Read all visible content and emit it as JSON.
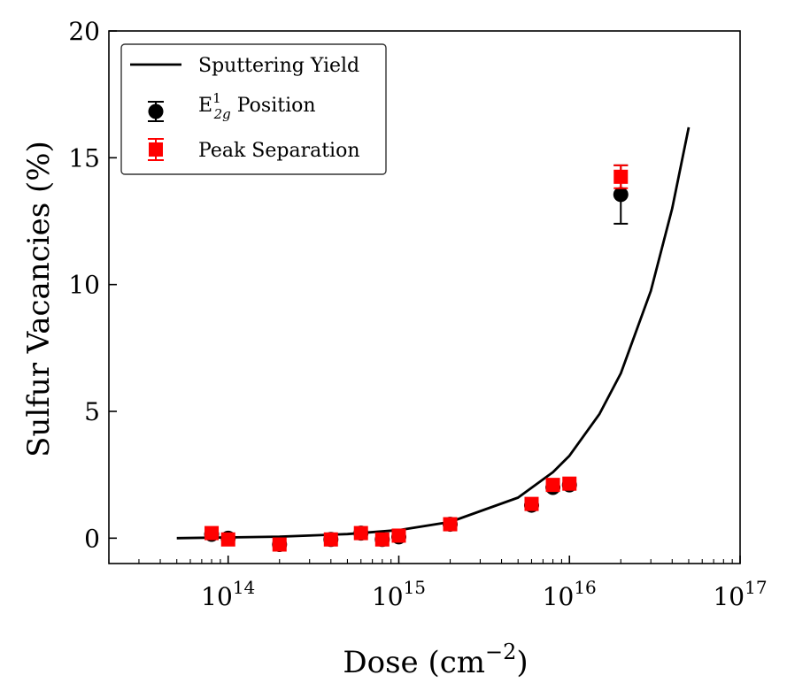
{
  "chart_data": {
    "type": "scatter",
    "title": "",
    "xlabel": "Dose (cm",
    "xlabel_sup": "−2",
    "xlabel_end": ")",
    "ylabel": "Sulfur Vacancies (%)",
    "xscale": "log",
    "xlim": [
      20000000000000.0,
      1e+17
    ],
    "ylim": [
      -1,
      20
    ],
    "grid": false,
    "legend_position": "top-left",
    "x_ticks": [
      {
        "value": 100000000000000.0,
        "base": "10",
        "exp": "14"
      },
      {
        "value": 1000000000000000.0,
        "base": "10",
        "exp": "15"
      },
      {
        "value": 1e+16,
        "base": "10",
        "exp": "16"
      },
      {
        "value": 1e+17,
        "base": "10",
        "exp": "17"
      }
    ],
    "y_ticks": [
      {
        "value": 0,
        "label": "0"
      },
      {
        "value": 5,
        "label": "5"
      },
      {
        "value": 10,
        "label": "10"
      },
      {
        "value": 15,
        "label": "15"
      },
      {
        "value": 20,
        "label": "20"
      }
    ],
    "series": [
      {
        "name": "Sputtering Yield",
        "kind": "line",
        "color": "#000000",
        "x": [
          50000000000000.0,
          100000000000000.0,
          200000000000000.0,
          500000000000000.0,
          1000000000000000.0,
          2000000000000000.0,
          5000000000000000.0,
          8000000000000000.0,
          1e+16,
          1.5e+16,
          2e+16,
          3e+16,
          4e+16,
          5e+16
        ],
        "y": [
          0.0,
          0.03,
          0.06,
          0.16,
          0.32,
          0.64,
          1.6,
          2.6,
          3.25,
          4.9,
          6.5,
          9.75,
          13.0,
          16.2
        ]
      },
      {
        "name": "E",
        "name_sup": "1",
        "name_sub": "2g",
        "name_rest": " Position",
        "kind": "errorbar",
        "marker": "circle",
        "color": "#000000",
        "x": [
          80000000000000.0,
          100000000000000.0,
          200000000000000.0,
          400000000000000.0,
          600000000000000.0,
          800000000000000.0,
          1000000000000000.0,
          2000000000000000.0,
          6000000000000000.0,
          8000000000000000.0,
          1e+16,
          2e+16
        ],
        "y": [
          0.15,
          0.0,
          -0.25,
          -0.05,
          0.2,
          -0.05,
          0.05,
          0.55,
          1.3,
          2.0,
          2.1,
          13.55
        ],
        "yerr": [
          0.1,
          0.1,
          0.1,
          0.1,
          0.1,
          0.1,
          0.1,
          0.1,
          0.1,
          0.1,
          0.1,
          1.15
        ]
      },
      {
        "name": "Peak Separation",
        "kind": "errorbar",
        "marker": "square",
        "color": "#ff0000",
        "x": [
          80000000000000.0,
          100000000000000.0,
          200000000000000.0,
          400000000000000.0,
          600000000000000.0,
          800000000000000.0,
          1000000000000000.0,
          2000000000000000.0,
          6000000000000000.0,
          8000000000000000.0,
          1e+16,
          2e+16
        ],
        "y": [
          0.2,
          -0.05,
          -0.25,
          -0.05,
          0.2,
          -0.05,
          0.1,
          0.55,
          1.35,
          2.1,
          2.15,
          14.25
        ],
        "yerr": [
          0.1,
          0.1,
          0.1,
          0.1,
          0.1,
          0.1,
          0.1,
          0.1,
          0.1,
          0.1,
          0.1,
          0.45
        ]
      }
    ]
  }
}
